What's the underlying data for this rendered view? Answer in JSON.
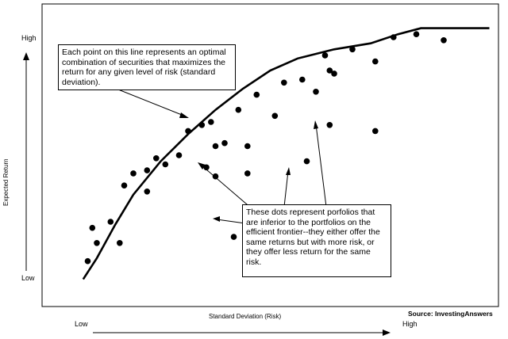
{
  "chart_data": {
    "type": "scatter",
    "xlabel": "Standard Deviation (Risk)",
    "ylabel": "Expected Return",
    "x_ticks": [
      "Low",
      "High"
    ],
    "y_ticks": [
      "High",
      "Low"
    ],
    "source": "Source: InvestingAnswers",
    "annotations": [
      "Each point on this line represents an optimal combination of securities that maximizes the return for any given level of risk (standard deviation).",
      "These dots represent porfolios that are inferior to the portfolios on the efficient frontier--they either offer the same returns but with more risk, or they offer less return for the same risk."
    ],
    "frontier": [
      [
        0.09,
        0.09
      ],
      [
        0.12,
        0.16
      ],
      [
        0.16,
        0.27
      ],
      [
        0.2,
        0.37
      ],
      [
        0.26,
        0.48
      ],
      [
        0.32,
        0.57
      ],
      [
        0.38,
        0.65
      ],
      [
        0.44,
        0.72
      ],
      [
        0.5,
        0.78
      ],
      [
        0.56,
        0.82
      ],
      [
        0.64,
        0.85
      ],
      [
        0.72,
        0.87
      ],
      [
        0.78,
        0.9
      ],
      [
        0.83,
        0.92
      ],
      [
        0.98,
        0.92
      ]
    ],
    "points": [
      [
        0.1,
        0.15
      ],
      [
        0.11,
        0.26
      ],
      [
        0.12,
        0.21
      ],
      [
        0.15,
        0.28
      ],
      [
        0.17,
        0.21
      ],
      [
        0.18,
        0.4
      ],
      [
        0.2,
        0.44
      ],
      [
        0.23,
        0.38
      ],
      [
        0.23,
        0.45
      ],
      [
        0.25,
        0.49
      ],
      [
        0.27,
        0.47
      ],
      [
        0.3,
        0.5
      ],
      [
        0.32,
        0.58
      ],
      [
        0.35,
        0.6
      ],
      [
        0.38,
        0.53
      ],
      [
        0.36,
        0.46
      ],
      [
        0.37,
        0.61
      ],
      [
        0.4,
        0.54
      ],
      [
        0.43,
        0.65
      ],
      [
        0.45,
        0.53
      ],
      [
        0.47,
        0.7
      ],
      [
        0.51,
        0.63
      ],
      [
        0.53,
        0.74
      ],
      [
        0.57,
        0.75
      ],
      [
        0.6,
        0.71
      ],
      [
        0.62,
        0.83
      ],
      [
        0.63,
        0.78
      ],
      [
        0.64,
        0.77
      ],
      [
        0.68,
        0.85
      ],
      [
        0.73,
        0.81
      ],
      [
        0.77,
        0.89
      ],
      [
        0.82,
        0.9
      ],
      [
        0.88,
        0.88
      ],
      [
        0.63,
        0.6
      ],
      [
        0.73,
        0.58
      ],
      [
        0.58,
        0.48
      ],
      [
        0.38,
        0.43
      ],
      [
        0.45,
        0.44
      ],
      [
        0.42,
        0.23
      ]
    ]
  }
}
